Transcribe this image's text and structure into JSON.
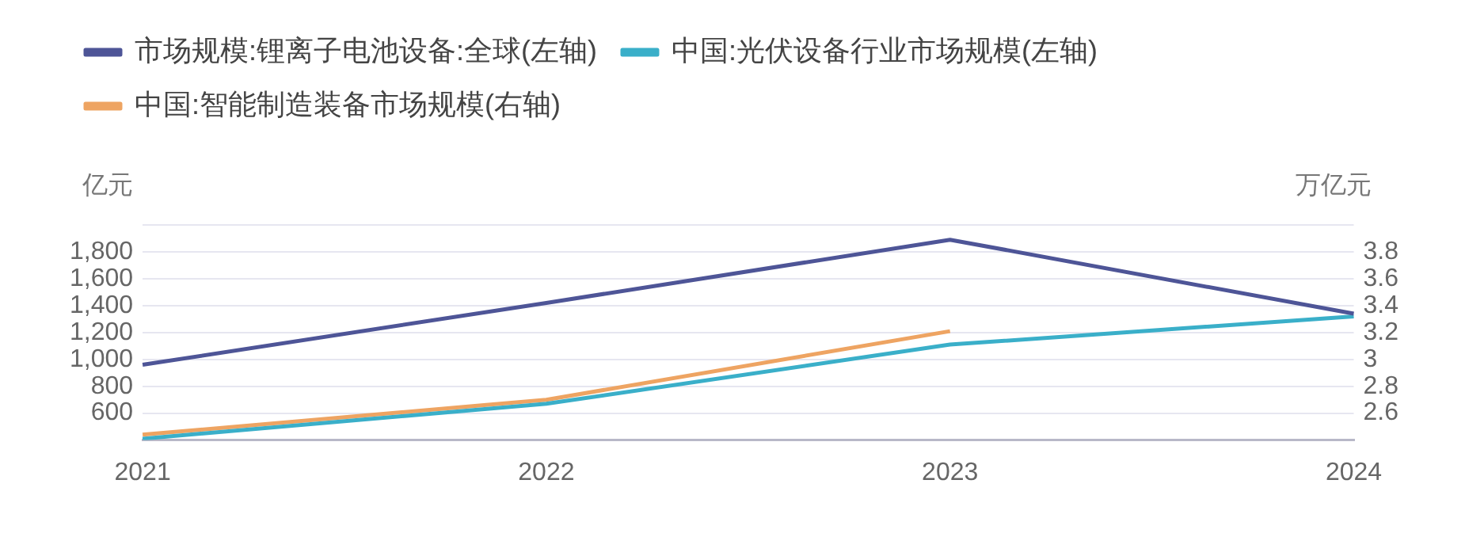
{
  "chart_data": {
    "type": "line",
    "categories": [
      "2021",
      "2022",
      "2023",
      "2024"
    ],
    "series": [
      {
        "name": "市场规模:锂离子电池设备:全球(左轴)",
        "color": "#4e5597",
        "values": [
          960,
          1420,
          1890,
          1340
        ]
      },
      {
        "name": "中国:光伏设备行业市场规模(左轴)",
        "color": "#3aafc9",
        "values": [
          410,
          670,
          1110,
          1320
        ]
      },
      {
        "name": "中国:智能制造装备市场规模(右轴)",
        "color": "#eea462",
        "axis": "y2",
        "values": [
          2.44,
          2.7,
          3.21,
          null
        ]
      }
    ],
    "ylabel": "亿元",
    "y2label": "万亿元",
    "ylim": [
      400,
      2000
    ],
    "yticks": [
      {
        "value": 400,
        "label": null
      },
      {
        "value": 600,
        "label": "600"
      },
      {
        "value": 800,
        "label": "800"
      },
      {
        "value": 1000,
        "label": "1,000"
      },
      {
        "value": 1200,
        "label": "1,200"
      },
      {
        "value": 1400,
        "label": "1,400"
      },
      {
        "value": 1600,
        "label": "1,600"
      },
      {
        "value": 1800,
        "label": "1,800"
      },
      {
        "value": 2000,
        "label": null
      }
    ],
    "y2lim": [
      2.4,
      4.0
    ],
    "y2ticks": [
      2.6,
      2.8,
      3,
      3.2,
      3.4,
      3.6,
      3.8
    ],
    "grid": "y",
    "legend": "top left",
    "marker": "none",
    "line_style": "solid"
  }
}
